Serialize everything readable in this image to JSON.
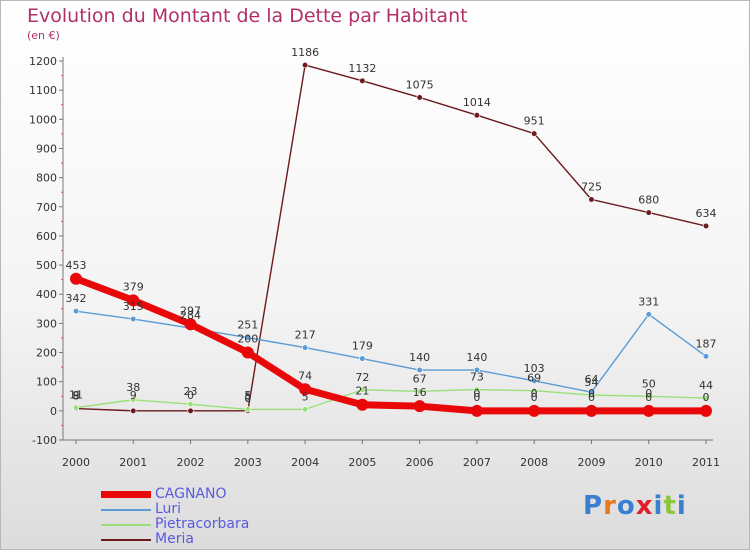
{
  "title": "Evolution du Montant de la Dette par Habitant",
  "unit": "(en €)",
  "logo": {
    "text": "Proxiti",
    "colors": [
      "#3a7fd0",
      "#e87a1a",
      "#3a7fd0",
      "#e0202a",
      "#3a7fd0",
      "#8cc63f",
      "#3a7fd0"
    ]
  },
  "chart_data": {
    "type": "line",
    "x": [
      "2000",
      "2001",
      "2002",
      "2003",
      "2004",
      "2005",
      "2006",
      "2007",
      "2008",
      "2009",
      "2010",
      "2011"
    ],
    "ylim": [
      -100,
      1200
    ],
    "yticks": [
      -100,
      0,
      100,
      200,
      300,
      400,
      500,
      600,
      700,
      800,
      900,
      1000,
      1100,
      1200
    ],
    "ytick_labels": [
      "-100",
      "0",
      "100",
      "200",
      "300",
      "400",
      "500",
      "600",
      "700",
      "800",
      "900",
      "1000",
      "1100",
      "1200"
    ],
    "grid": false,
    "legend_position": "bottom-left",
    "series": [
      {
        "name": "Meria",
        "color": "#6b1a1e",
        "width": 1.4,
        "marker": 2.8,
        "values": [
          8,
          0,
          0,
          0,
          1186,
          1132,
          1075,
          1014,
          951,
          725,
          680,
          634
        ],
        "labels": [
          "8",
          "",
          "",
          "0",
          "1186",
          "1132",
          "1075",
          "1014",
          "951",
          "725",
          "680",
          "634"
        ]
      },
      {
        "name": "Pietracorbara",
        "color": "#99e07a",
        "width": 1.4,
        "marker": 2.8,
        "values": [
          11,
          38,
          23,
          5,
          5,
          72,
          67,
          73,
          69,
          54,
          50,
          44
        ],
        "labels": [
          "11",
          "38",
          "23",
          "5",
          "5",
          "72",
          "67",
          "73",
          "69",
          "54",
          "50",
          "44"
        ]
      },
      {
        "name": "Luri",
        "color": "#5b9bd5",
        "width": 1.4,
        "marker": 2.8,
        "values": [
          342,
          315,
          284,
          251,
          217,
          179,
          140,
          140,
          103,
          64,
          331,
          187
        ],
        "labels": [
          "342",
          "315",
          "284",
          "251",
          "217",
          "179",
          "140",
          "140",
          "103",
          "64",
          "331",
          "187"
        ]
      },
      {
        "name": "CAGNANO",
        "color": "#e8080a",
        "width": 7,
        "marker": 6,
        "values": [
          453,
          379,
          297,
          200,
          74,
          21,
          16,
          0,
          0,
          0,
          0,
          0
        ],
        "labels": [
          "453",
          "379",
          "297",
          "200",
          "74",
          "21",
          "16",
          "0",
          "0",
          "0",
          "0",
          "0"
        ]
      }
    ],
    "extra_labels": [
      "9",
      "9",
      "0",
      "5",
      "0",
      "0",
      "0",
      "0"
    ]
  },
  "legend": [
    {
      "name": "CAGNANO",
      "color": "#e8080a",
      "thickness": 7
    },
    {
      "name": "Luri",
      "color": "#5b9bd5",
      "thickness": 2
    },
    {
      "name": "Pietracorbara",
      "color": "#99e07a",
      "thickness": 2
    },
    {
      "name": "Meria",
      "color": "#6b1a1e",
      "thickness": 2
    }
  ]
}
